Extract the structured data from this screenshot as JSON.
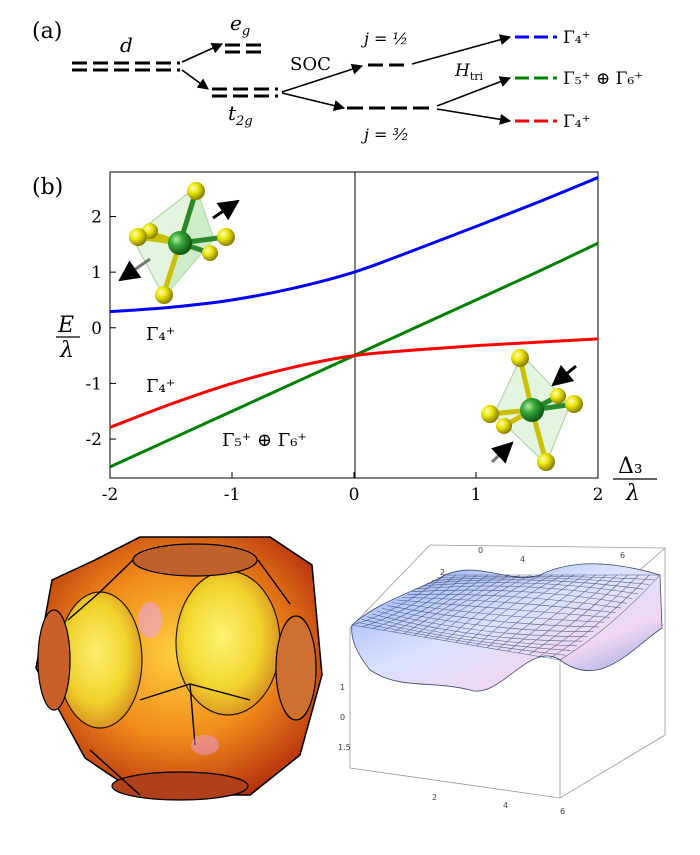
{
  "panel_a": {
    "label": "(a)",
    "d_label": "d",
    "eg_label": "e",
    "eg_sub": "g",
    "t2g_label": "t",
    "t2g_sub": "2g",
    "soc_label": "SOC",
    "j_half_label": "j = ½",
    "j_three_half_label": "j = ³⁄₂",
    "htri_label": "H",
    "htri_sub": "tri",
    "levels": [
      {
        "label": "Γ₄⁺",
        "color": "#0000ff"
      },
      {
        "label": "Γ₅⁺ ⊕ Γ₆⁺",
        "color": "#008000"
      },
      {
        "label": "Γ₄⁺",
        "color": "#ff0000"
      }
    ]
  },
  "panel_b": {
    "label": "(b)",
    "ylabel_num": "E",
    "ylabel_den": "λ",
    "xlabel_num": "Δ₃",
    "xlabel_den": "λ",
    "curve_labels": {
      "blue": "Γ₄⁺",
      "red": "Γ₄⁺",
      "green": "Γ₅⁺ ⊕ Γ₆⁺"
    },
    "xticks": [
      "-2",
      "-1",
      "0",
      "1",
      "2"
    ],
    "yticks": [
      "2",
      "1",
      "0",
      "-1",
      "-2"
    ]
  },
  "chart_data": {
    "type": "line",
    "x": [
      -2,
      -1.5,
      -1,
      -0.5,
      0,
      0.5,
      1,
      1.5,
      2
    ],
    "xlim": [
      -2,
      2
    ],
    "ylim": [
      -2.7,
      2.8
    ],
    "series": [
      {
        "color": "#0000ff",
        "values": [
          0.29,
          0.37,
          0.5,
          0.71,
          1.0,
          1.4,
          1.82,
          2.25,
          2.7
        ]
      },
      {
        "color": "#008000",
        "values": [
          -2.5,
          -2.0,
          -1.5,
          -1.0,
          -0.5,
          0.0,
          0.5,
          1.0,
          1.52
        ]
      },
      {
        "color": "#ff0000",
        "values": [
          -1.79,
          -1.37,
          -1.0,
          -0.71,
          -0.5,
          -0.4,
          -0.32,
          -0.26,
          -0.2
        ]
      }
    ],
    "grid": false
  },
  "colors": {
    "blue": "#0000ff",
    "green": "#008000",
    "red": "#ff0000",
    "ligand": "#e8e000",
    "metal": "#2aa02a"
  }
}
